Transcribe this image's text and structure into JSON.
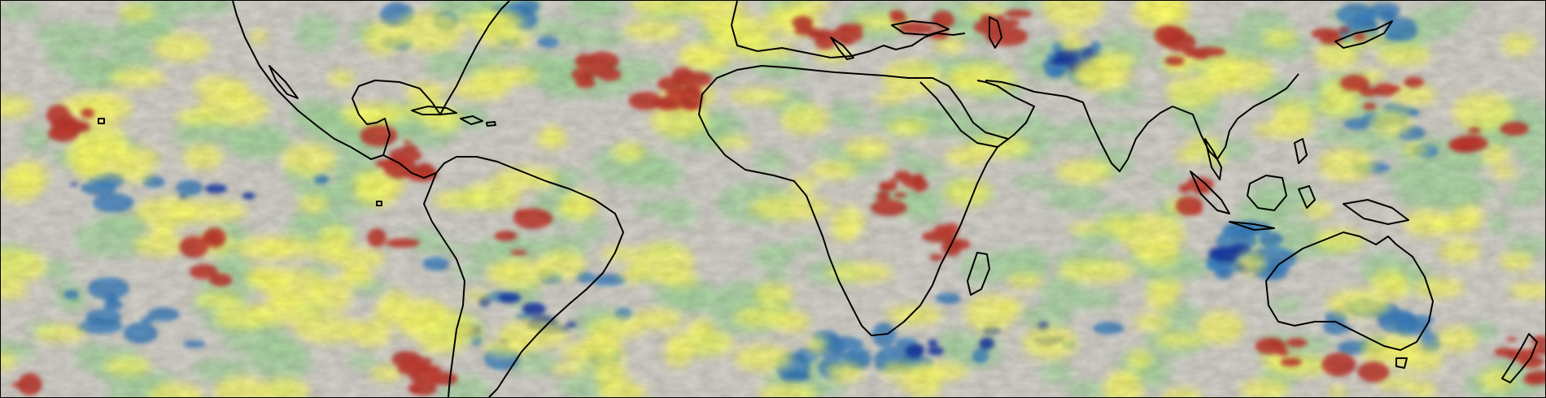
{
  "map": {
    "type": "global precipitation anomaly field (equirectangular, tropics)",
    "colorscale": {
      "strong_positive": "#c23a2e",
      "positive": "#ffff66",
      "neutral": "#d6d3cc",
      "negative": "#a9d7a1",
      "strong_negative": "#3b7fc0",
      "extreme_negative": "#1c3fa8"
    },
    "coastline_color": "#000000",
    "regions_shown": [
      "north-america-south",
      "central-america",
      "caribbean",
      "south-america",
      "africa",
      "madagascar",
      "europe-mediterranean",
      "arabian-peninsula",
      "india",
      "southeast-asia",
      "maritime-continent",
      "australia",
      "new-zealand",
      "japan"
    ]
  }
}
